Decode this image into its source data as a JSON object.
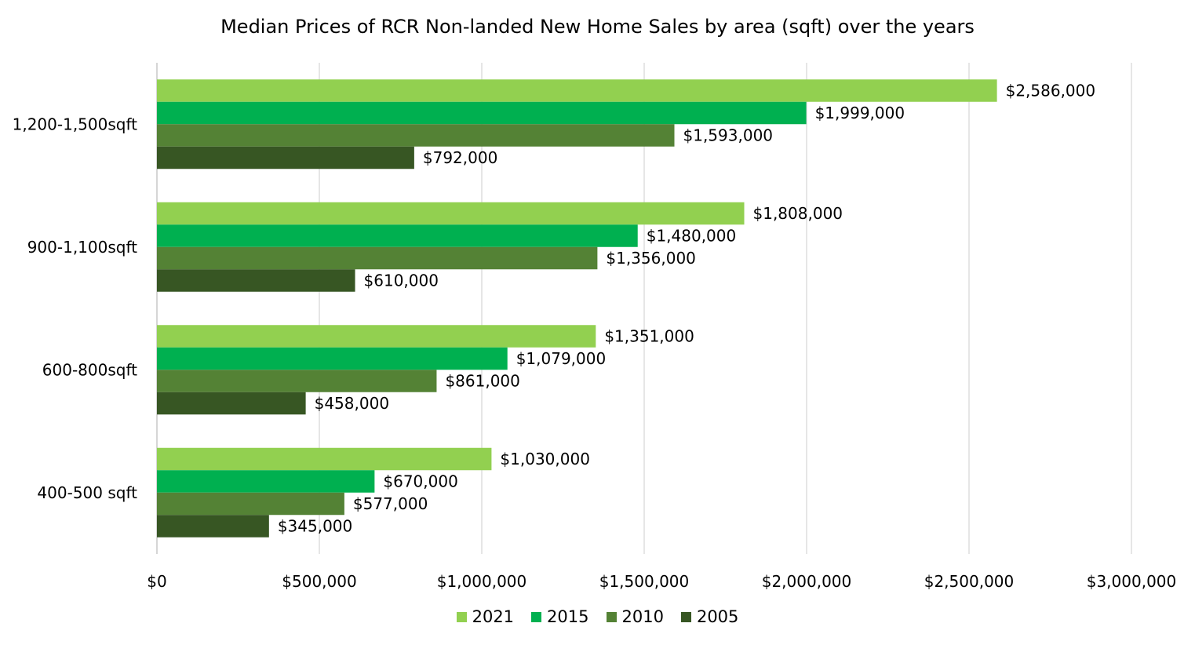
{
  "chart_data": {
    "type": "bar",
    "orientation": "horizontal",
    "title": "Median Prices of RCR Non-landed New Home Sales by area (sqft) over the years",
    "xlabel": "",
    "ylabel": "",
    "xlim": [
      0,
      3000000
    ],
    "x_ticks": [
      0,
      500000,
      1000000,
      1500000,
      2000000,
      2500000,
      3000000
    ],
    "x_tick_labels": [
      "$0",
      "$500,000",
      "$1,000,000",
      "$1,500,000",
      "$2,000,000",
      "$2,500,000",
      "$3,000,000"
    ],
    "grid": "vertical",
    "legend_position": "bottom",
    "categories": [
      "1,200-1,500sqft",
      "900-1,100sqft",
      "600-800sqft",
      "400-500 sqft"
    ],
    "series": [
      {
        "name": "2021",
        "color": "#92D050",
        "values": [
          2586000,
          1808000,
          1351000,
          1030000
        ],
        "labels": [
          "$2,586,000",
          "$1,808,000",
          "$1,351,000",
          "$1,030,000"
        ]
      },
      {
        "name": "2015",
        "color": "#00B050",
        "values": [
          1999000,
          1480000,
          1079000,
          670000
        ],
        "labels": [
          "$1,999,000",
          "$1,480,000",
          "$1,079,000",
          "$670,000"
        ]
      },
      {
        "name": "2010",
        "color": "#548235",
        "values": [
          1593000,
          1356000,
          861000,
          577000
        ],
        "labels": [
          "$1,593,000",
          "$1,356,000",
          "$861,000",
          "$577,000"
        ]
      },
      {
        "name": "2005",
        "color": "#375623",
        "values": [
          792000,
          610000,
          458000,
          345000
        ],
        "labels": [
          "$792,000",
          "$610,000",
          "$458,000",
          "$345,000"
        ]
      }
    ]
  }
}
